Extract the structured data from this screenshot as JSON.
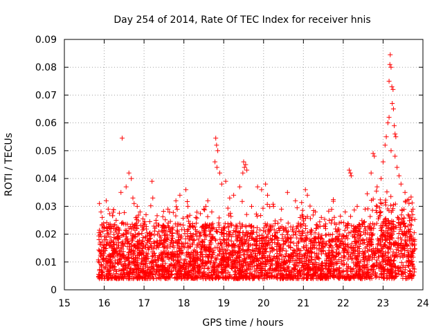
{
  "chart_data": {
    "type": "scatter",
    "title": "Day 254 of 2014, Rate Of TEC Index for receiver hnis",
    "xlabel": "GPS time / hours",
    "ylabel": "ROTI / TECUs",
    "xlim": [
      15,
      24
    ],
    "ylim": [
      0,
      0.09
    ],
    "xticks": [
      15,
      16,
      17,
      18,
      19,
      20,
      21,
      22,
      23,
      24
    ],
    "yticks": [
      0,
      0.01,
      0.02,
      0.03,
      0.04,
      0.05,
      0.06,
      0.07,
      0.08,
      0.09
    ],
    "xtick_labels": [
      "15",
      "16",
      "17",
      "18",
      "19",
      "20",
      "21",
      "22",
      "23",
      "24"
    ],
    "ytick_labels": [
      "0",
      "0.01",
      "0.02",
      "0.03",
      "0.04",
      "0.05",
      "0.06",
      "0.07",
      "0.08",
      "0.09"
    ],
    "grid": true,
    "marker": "+",
    "marker_color": "#ff0000",
    "x_range_of_data": [
      15.85,
      23.8
    ],
    "series": [
      {
        "name": "ROTI",
        "points": [
          [
            15.88,
            0.031
          ],
          [
            15.92,
            0.028
          ],
          [
            15.95,
            0.026
          ],
          [
            16.05,
            0.032
          ],
          [
            16.1,
            0.029
          ],
          [
            16.3,
            0.025
          ],
          [
            16.45,
            0.0545
          ],
          [
            16.42,
            0.035
          ],
          [
            16.55,
            0.037
          ],
          [
            16.62,
            0.042
          ],
          [
            16.68,
            0.04
          ],
          [
            16.72,
            0.033
          ],
          [
            16.75,
            0.031
          ],
          [
            16.9,
            0.028
          ],
          [
            17.05,
            0.027
          ],
          [
            17.2,
            0.039
          ],
          [
            17.22,
            0.033
          ],
          [
            17.3,
            0.025
          ],
          [
            17.6,
            0.029
          ],
          [
            17.8,
            0.032
          ],
          [
            17.9,
            0.034
          ],
          [
            18.05,
            0.036
          ],
          [
            18.1,
            0.03
          ],
          [
            18.3,
            0.026
          ],
          [
            18.55,
            0.03
          ],
          [
            18.6,
            0.032
          ],
          [
            18.7,
            0.028
          ],
          [
            18.8,
            0.0545
          ],
          [
            18.82,
            0.052
          ],
          [
            18.85,
            0.05
          ],
          [
            18.78,
            0.046
          ],
          [
            18.83,
            0.044
          ],
          [
            18.9,
            0.042
          ],
          [
            18.95,
            0.038
          ],
          [
            19.05,
            0.039
          ],
          [
            19.15,
            0.033
          ],
          [
            19.25,
            0.034
          ],
          [
            19.4,
            0.037
          ],
          [
            19.5,
            0.046
          ],
          [
            19.52,
            0.044
          ],
          [
            19.55,
            0.045
          ],
          [
            19.58,
            0.043
          ],
          [
            19.48,
            0.042
          ],
          [
            19.7,
            0.03
          ],
          [
            19.85,
            0.037
          ],
          [
            19.95,
            0.036
          ],
          [
            20.05,
            0.038
          ],
          [
            20.1,
            0.034
          ],
          [
            20.25,
            0.03
          ],
          [
            20.45,
            0.029
          ],
          [
            20.6,
            0.035
          ],
          [
            20.8,
            0.032
          ],
          [
            21.05,
            0.036
          ],
          [
            21.1,
            0.034
          ],
          [
            21.3,
            0.028
          ],
          [
            21.45,
            0.026
          ],
          [
            21.65,
            0.025
          ],
          [
            21.9,
            0.024
          ],
          [
            22.05,
            0.028
          ],
          [
            22.15,
            0.043
          ],
          [
            22.18,
            0.042
          ],
          [
            22.2,
            0.041
          ],
          [
            22.35,
            0.03
          ],
          [
            22.55,
            0.029
          ],
          [
            22.7,
            0.042
          ],
          [
            22.75,
            0.049
          ],
          [
            22.78,
            0.048
          ],
          [
            22.85,
            0.037
          ],
          [
            22.95,
            0.04
          ],
          [
            23.0,
            0.046
          ],
          [
            23.05,
            0.052
          ],
          [
            23.08,
            0.055
          ],
          [
            23.12,
            0.06
          ],
          [
            23.15,
            0.062
          ],
          [
            23.18,
            0.0845
          ],
          [
            23.17,
            0.081
          ],
          [
            23.2,
            0.08
          ],
          [
            23.15,
            0.075
          ],
          [
            23.22,
            0.073
          ],
          [
            23.25,
            0.072
          ],
          [
            23.23,
            0.067
          ],
          [
            23.26,
            0.065
          ],
          [
            23.28,
            0.059
          ],
          [
            23.3,
            0.056
          ],
          [
            23.32,
            0.055
          ],
          [
            23.2,
            0.05
          ],
          [
            23.3,
            0.048
          ],
          [
            23.35,
            0.044
          ],
          [
            23.4,
            0.041
          ],
          [
            23.45,
            0.038
          ],
          [
            23.55,
            0.035
          ],
          [
            23.65,
            0.031
          ],
          [
            23.75,
            0.029
          ]
        ]
      }
    ]
  }
}
